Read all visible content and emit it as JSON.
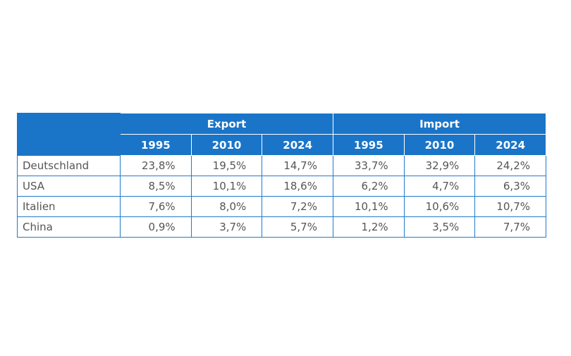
{
  "table": {
    "groups": [
      "Export",
      "Import"
    ],
    "years": [
      "1995",
      "2010",
      "2024",
      "1995",
      "2010",
      "2024"
    ],
    "rows": [
      {
        "label": "Deutschland",
        "values": [
          "23,8%",
          "19,5%",
          "14,7%",
          "33,7%",
          "32,9%",
          "24,2%"
        ]
      },
      {
        "label": "USA",
        "values": [
          "8,5%",
          "10,1%",
          "18,6%",
          "6,2%",
          "4,7%",
          "6,3%"
        ]
      },
      {
        "label": "Italien",
        "values": [
          "7,6%",
          "8,0%",
          "7,2%",
          "10,1%",
          "10,6%",
          "10,7%"
        ]
      },
      {
        "label": "China",
        "values": [
          "0,9%",
          "3,7%",
          "5,7%",
          "1,2%",
          "3,5%",
          "7,7%"
        ]
      }
    ]
  },
  "colors": {
    "header": "#1a75c8",
    "border": "#1f7bcc",
    "text": "#555555"
  }
}
